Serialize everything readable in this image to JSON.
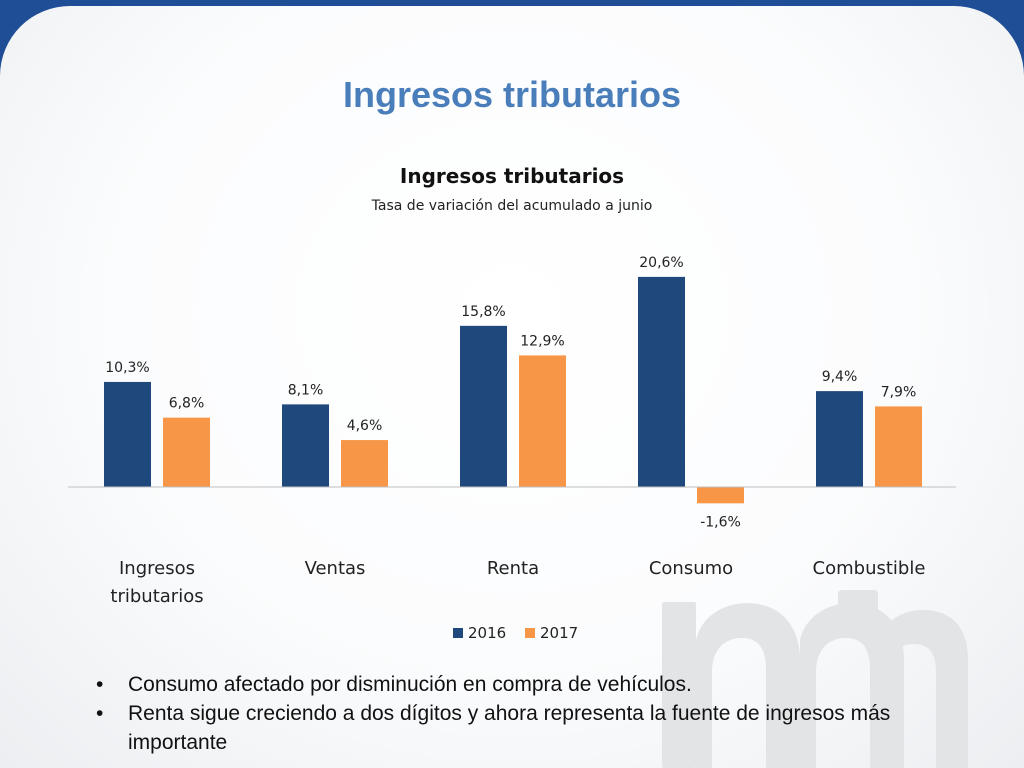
{
  "slide": {
    "title": "Ingresos tributarios"
  },
  "chart_data": {
    "type": "bar",
    "title": "Ingresos tributarios",
    "subtitle": "Tasa de variación del acumulado a junio",
    "categories": [
      "Ingresos tributarios",
      "Ventas",
      "Renta",
      "Consumo",
      "Combustible"
    ],
    "category_lines": [
      [
        "Ingresos",
        "tributarios"
      ],
      [
        "Ventas"
      ],
      [
        "Renta"
      ],
      [
        "Consumo"
      ],
      [
        "Combustible"
      ]
    ],
    "series": [
      {
        "name": "2016",
        "values": [
          10.3,
          8.1,
          15.8,
          20.6,
          9.4
        ],
        "labels": [
          "10,3%",
          "8,1%",
          "15,8%",
          "20,6%",
          "9,4%"
        ],
        "color": "#1f497d"
      },
      {
        "name": "2017",
        "values": [
          6.8,
          4.6,
          12.9,
          -1.6,
          7.9
        ],
        "labels": [
          "6,8%",
          "4,6%",
          "12,9%",
          "-1,6%",
          "7,9%"
        ],
        "color": "#f79646"
      }
    ],
    "ylim": [
      -2,
      22
    ],
    "grid": false,
    "legend": "bottom"
  },
  "bullets": [
    "Consumo afectado por disminución en compra de vehículos.",
    "Renta sigue creciendo a dos dígitos y ahora representa la fuente de ingresos más importante"
  ],
  "colors": {
    "frame": "#1f4e96",
    "title": "#4a7ebb",
    "watermark": "#e3e4e6"
  }
}
